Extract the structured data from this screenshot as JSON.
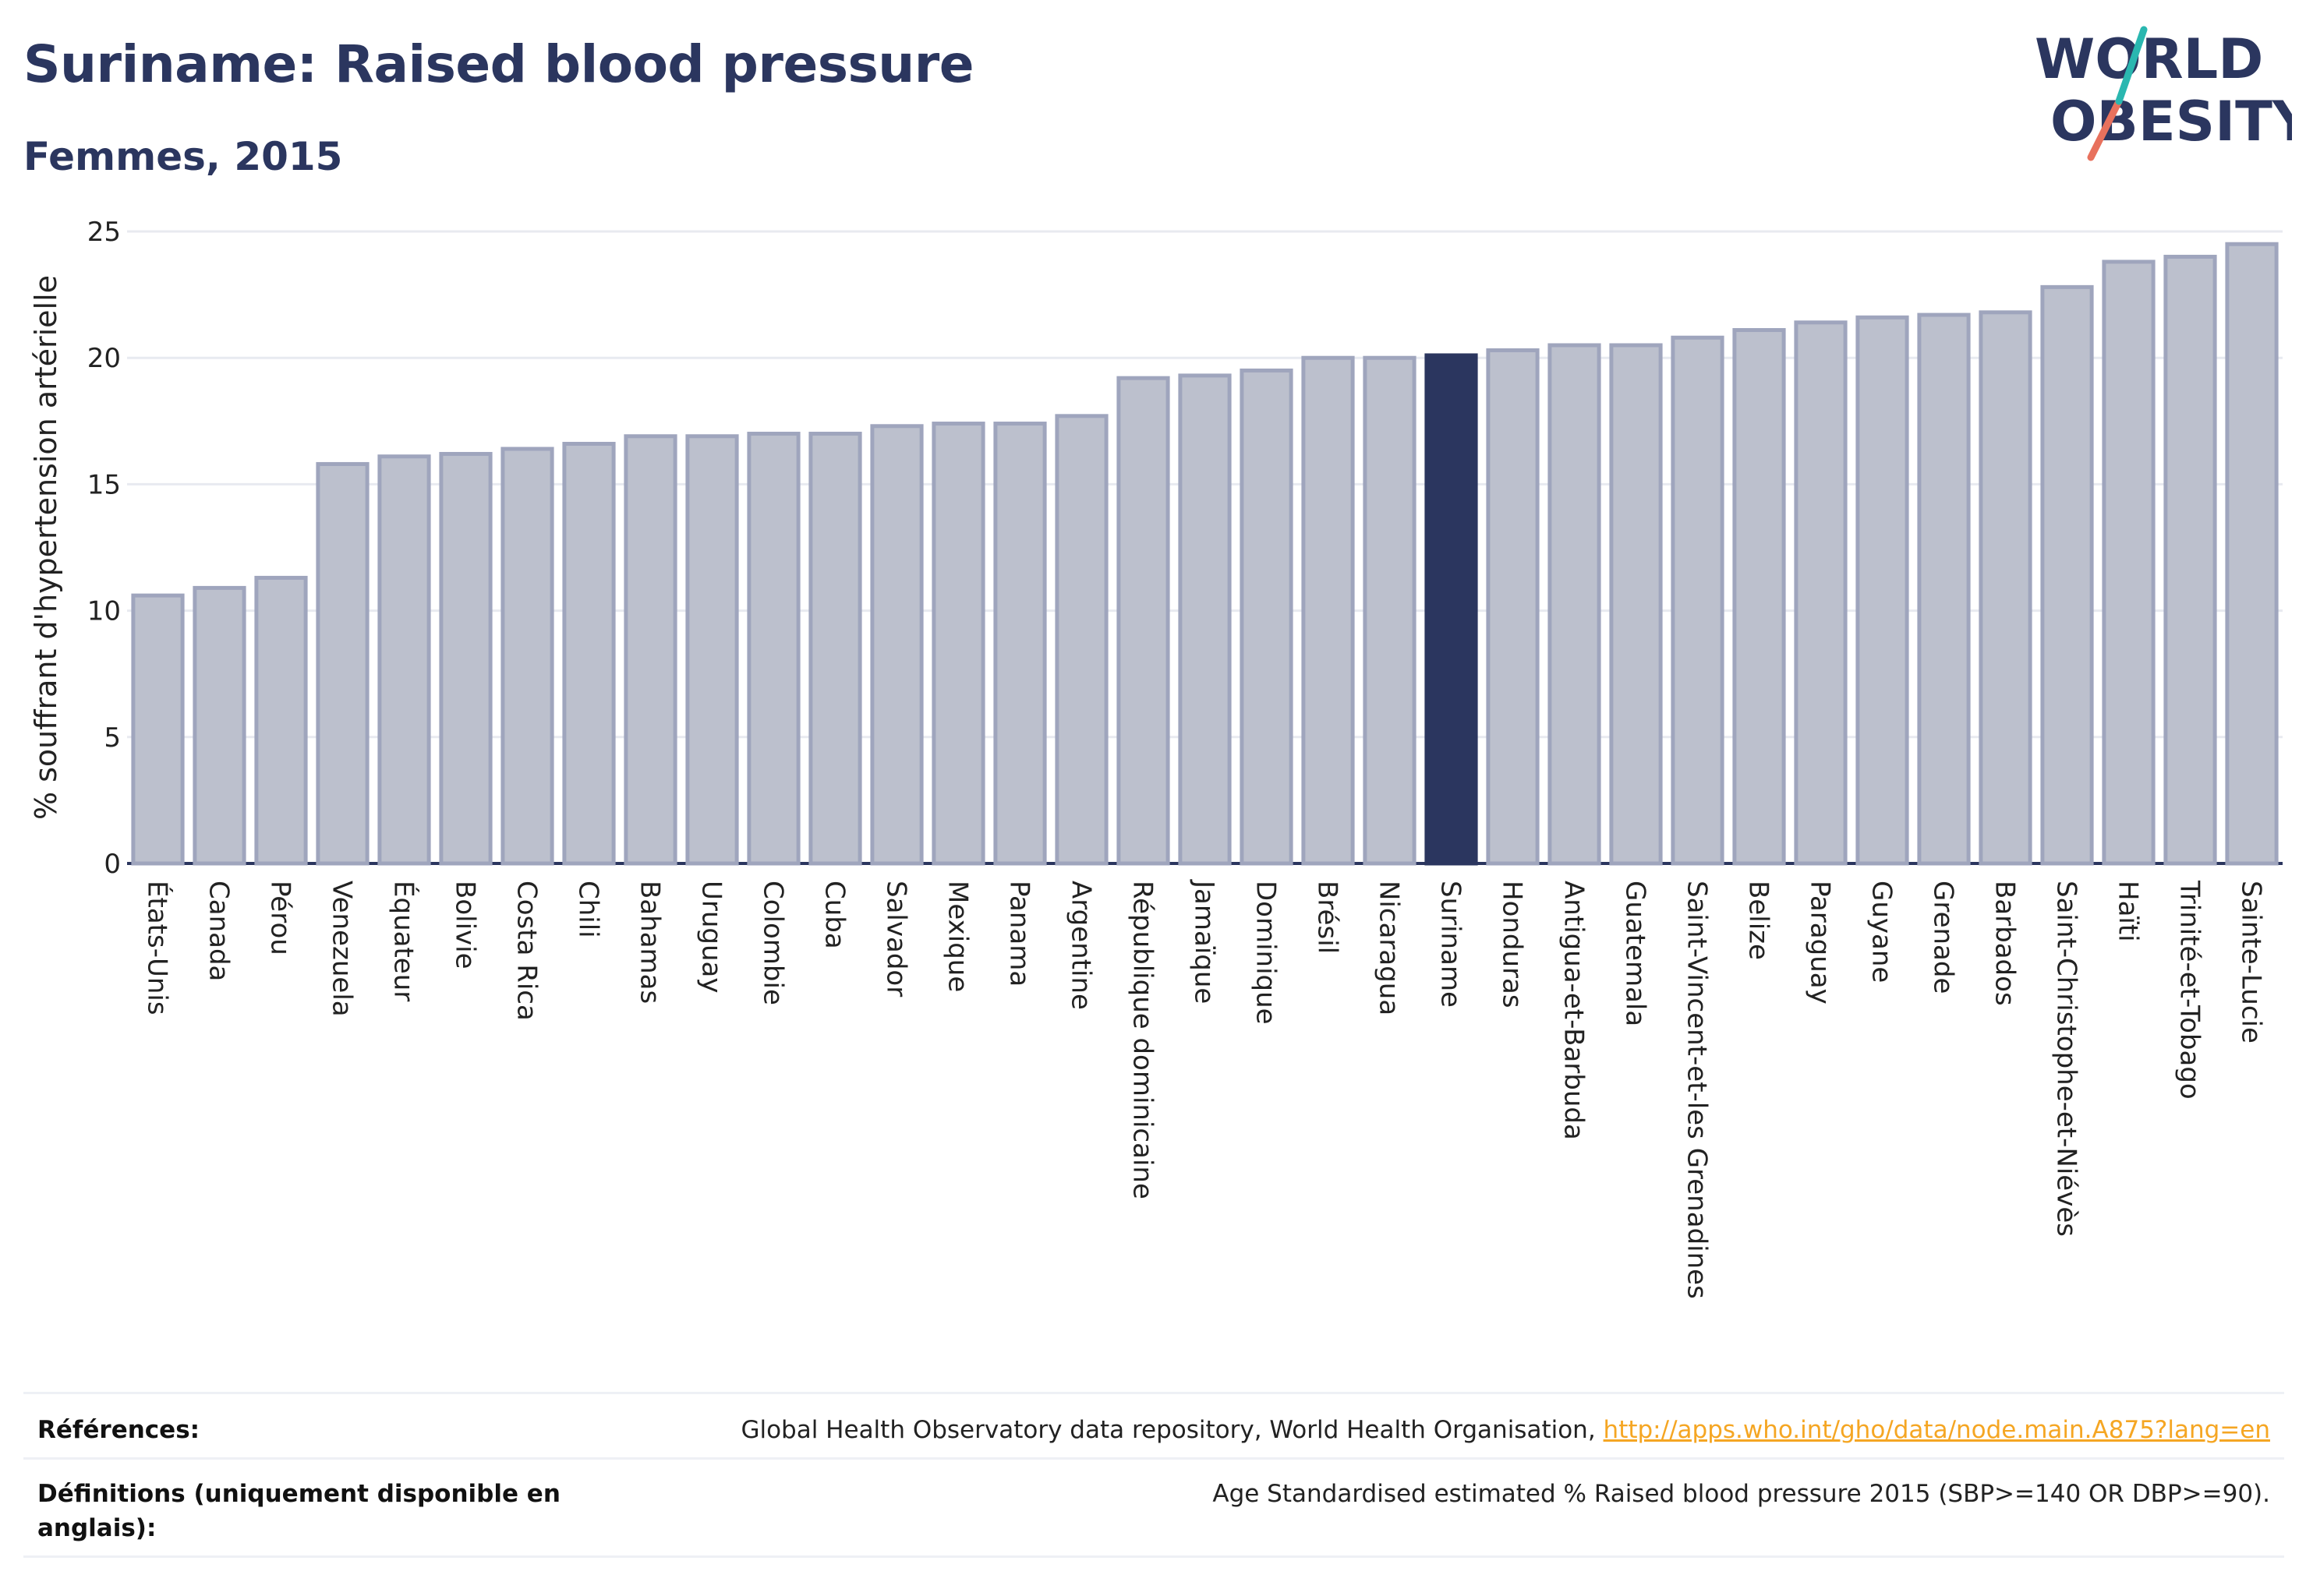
{
  "title": "Suriname: Raised blood pressure",
  "subtitle": "Femmes, 2015",
  "logo": {
    "line1": "WORLD",
    "line2": "OBESITY"
  },
  "colors": {
    "bar_fill": "#bcc0cd",
    "bar_stroke": "#9fa5bd",
    "highlight": "#2b365f",
    "grid": "#e8eaf0",
    "logo_teal": "#2ab7b0",
    "logo_coral": "#e8715d",
    "link": "#f5a623"
  },
  "chart_data": {
    "type": "bar",
    "ylabel": "% souffrant d'hypertension artérielle",
    "ylim": [
      0,
      25
    ],
    "yticks": [
      0,
      5,
      10,
      15,
      20,
      25
    ],
    "grid": true,
    "highlight": "Suriname",
    "categories": [
      "États-Unis",
      "Canada",
      "Pérou",
      "Venezuela",
      "Équateur",
      "Bolivie",
      "Costa Rica",
      "Chili",
      "Bahamas",
      "Uruguay",
      "Colombie",
      "Cuba",
      "Salvador",
      "Mexique",
      "Panama",
      "Argentine",
      "République dominicaine",
      "Jamaïque",
      "Dominique",
      "Brésil",
      "Nicaragua",
      "Suriname",
      "Honduras",
      "Antigua-et-Barbuda",
      "Guatemala",
      "Saint-Vincent-et-les Grenadines",
      "Belize",
      "Paraguay",
      "Guyane",
      "Grenade",
      "Barbados",
      "Saint-Christophe-et-Niévès",
      "Haïti",
      "Trinité-et-Tobago",
      "Sainte-Lucie"
    ],
    "values": [
      10.6,
      10.9,
      11.3,
      15.8,
      16.1,
      16.2,
      16.4,
      16.6,
      16.9,
      16.9,
      17.0,
      17.0,
      17.3,
      17.4,
      17.4,
      17.7,
      19.2,
      19.3,
      19.5,
      20.0,
      20.0,
      20.1,
      20.3,
      20.5,
      20.5,
      20.8,
      21.1,
      21.4,
      21.6,
      21.7,
      21.8,
      22.8,
      23.8,
      24.0,
      24.5
    ]
  },
  "footer": {
    "references_label": "Références:",
    "references_text": "Global Health Observatory data repository, World Health Organisation, ",
    "references_link": "http://apps.who.int/gho/data/node.main.A875?lang=en",
    "definitions_label": "Définitions (uniquement disponible en anglais):",
    "definitions_text": "Age Standardised estimated % Raised blood pressure 2015 (SBP>=140 OR DBP>=90)."
  }
}
